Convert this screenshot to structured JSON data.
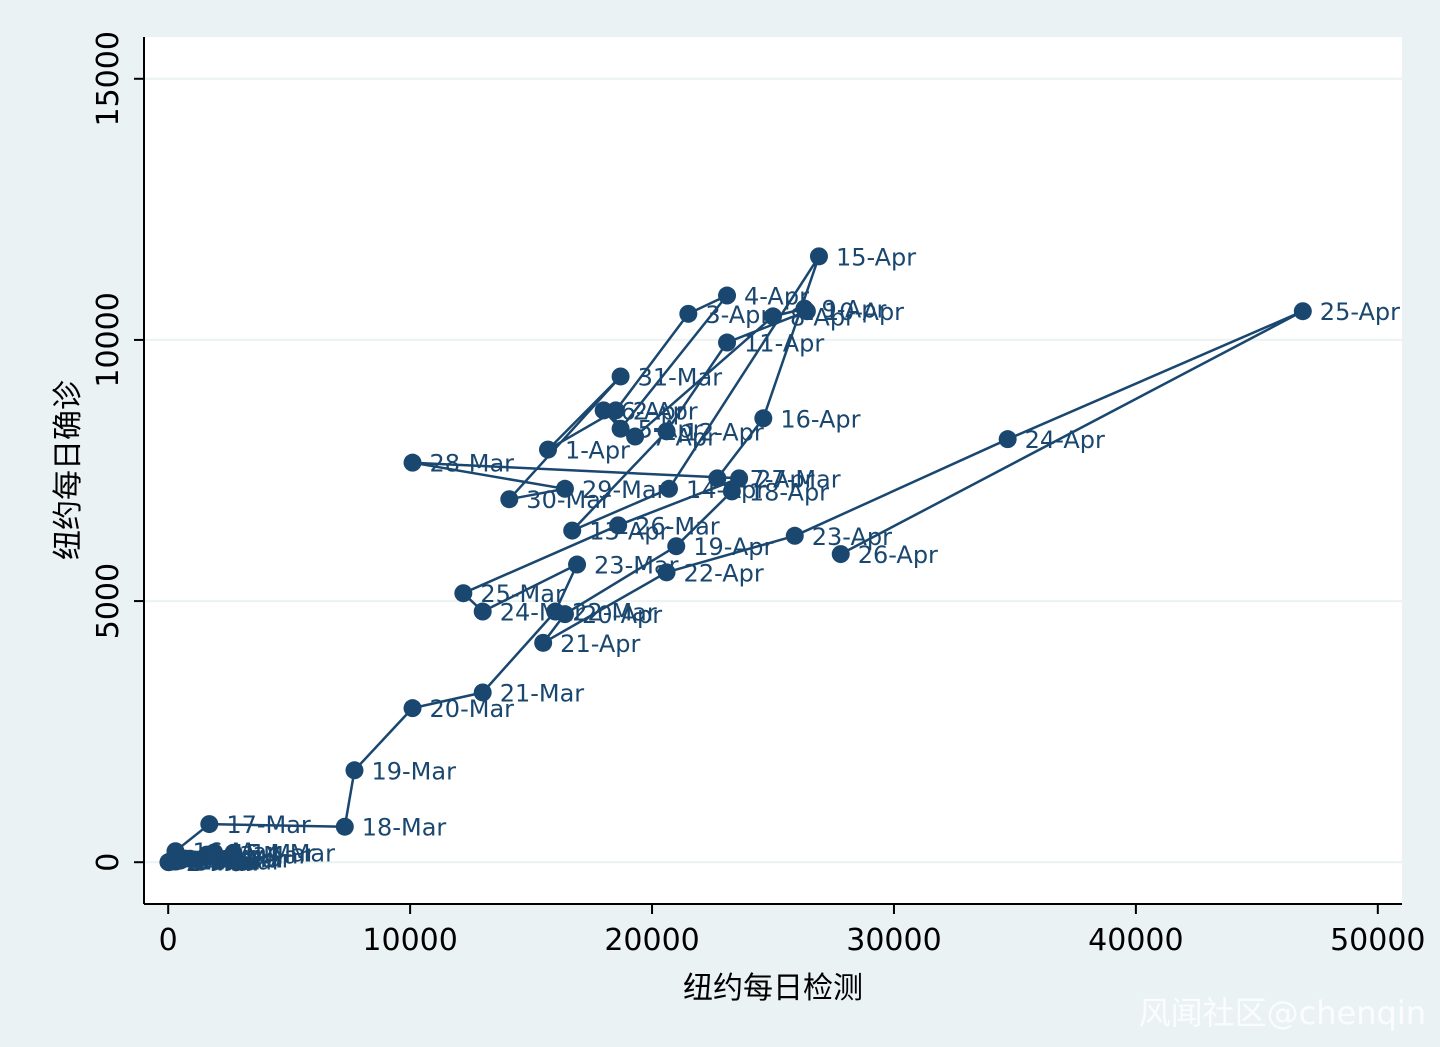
{
  "watermark": "风闻社区@chenqin",
  "chart_data": {
    "type": "scatter",
    "connected": true,
    "title": "",
    "xlabel": "纽约每日检测",
    "ylabel": "纽约每日确诊",
    "xlim": [
      -1000,
      51000
    ],
    "ylim": [
      -800,
      15800
    ],
    "xticks": [
      0,
      10000,
      20000,
      30000,
      40000,
      50000
    ],
    "yticks": [
      0,
      5000,
      10000,
      15000
    ],
    "grid": "horizontal",
    "colors": {
      "series": "#1a476f",
      "plot_bg": "#ffffff",
      "outer_bg": "#eaf2f3",
      "grid": "#eaf2f3"
    },
    "points": [
      {
        "label": "1-Mar",
        "x": 10,
        "y": 1
      },
      {
        "label": "2-Mar",
        "x": 30,
        "y": 2
      },
      {
        "label": "3-Mar",
        "x": 60,
        "y": 10
      },
      {
        "label": "4-Mar",
        "x": 110,
        "y": 11
      },
      {
        "label": "5-Mar",
        "x": 160,
        "y": 22
      },
      {
        "label": "6-Mar",
        "x": 230,
        "y": 44
      },
      {
        "label": "7-Mar",
        "x": 290,
        "y": 13
      },
      {
        "label": "8-Mar",
        "x": 330,
        "y": 16
      },
      {
        "label": "9-Mar",
        "x": 400,
        "y": 36
      },
      {
        "label": "10-Mar",
        "x": 500,
        "y": 31
      },
      {
        "label": "11-Mar",
        "x": 700,
        "y": 69
      },
      {
        "label": "12-Mar",
        "x": 900,
        "y": 67
      },
      {
        "label": "13-Mar",
        "x": 1600,
        "y": 146
      },
      {
        "label": "14-Mar",
        "x": 2700,
        "y": 182
      },
      {
        "label": "15-Mar",
        "x": 1900,
        "y": 186
      },
      {
        "label": "16-Mar",
        "x": 300,
        "y": 210
      },
      {
        "label": "17-Mar",
        "x": 1700,
        "y": 730
      },
      {
        "label": "18-Mar",
        "x": 7300,
        "y": 680
      },
      {
        "label": "19-Mar",
        "x": 7700,
        "y": 1760
      },
      {
        "label": "20-Mar",
        "x": 10100,
        "y": 2950
      },
      {
        "label": "21-Mar",
        "x": 13000,
        "y": 3250
      },
      {
        "label": "22-Mar",
        "x": 16000,
        "y": 4800
      },
      {
        "label": "23-Mar",
        "x": 16900,
        "y": 5700
      },
      {
        "label": "24-Mar",
        "x": 13000,
        "y": 4800
      },
      {
        "label": "25-Mar",
        "x": 12200,
        "y": 5150
      },
      {
        "label": "26-Mar",
        "x": 18600,
        "y": 6450
      },
      {
        "label": "27-Mar",
        "x": 23600,
        "y": 7350
      },
      {
        "label": "28-Mar",
        "x": 10100,
        "y": 7650
      },
      {
        "label": "29-Mar",
        "x": 16400,
        "y": 7150
      },
      {
        "label": "30-Mar",
        "x": 14100,
        "y": 6950
      },
      {
        "label": "31-Mar",
        "x": 18700,
        "y": 9300
      },
      {
        "label": "1-Apr",
        "x": 15700,
        "y": 7900
      },
      {
        "label": "2-Apr",
        "x": 18500,
        "y": 8650
      },
      {
        "label": "3-Apr",
        "x": 21500,
        "y": 10500
      },
      {
        "label": "4-Apr",
        "x": 23100,
        "y": 10850
      },
      {
        "label": "5-Apr",
        "x": 18700,
        "y": 8300
      },
      {
        "label": "6-Apr",
        "x": 18000,
        "y": 8650
      },
      {
        "label": "7-Apr",
        "x": 19300,
        "y": 8150
      },
      {
        "label": "8-Apr",
        "x": 25000,
        "y": 10450
      },
      {
        "label": "9-Apr",
        "x": 26300,
        "y": 10600
      },
      {
        "label": "10-Apr",
        "x": 26400,
        "y": 10550
      },
      {
        "label": "11-Apr",
        "x": 23100,
        "y": 9950
      },
      {
        "label": "12-Apr",
        "x": 20600,
        "y": 8250
      },
      {
        "label": "13-Apr",
        "x": 16700,
        "y": 6350
      },
      {
        "label": "14-Apr",
        "x": 20700,
        "y": 7150
      },
      {
        "label": "15-Apr",
        "x": 26900,
        "y": 11600
      },
      {
        "label": "16-Apr",
        "x": 24600,
        "y": 8500
      },
      {
        "label": "17-Apr",
        "x": 22700,
        "y": 7350
      },
      {
        "label": "18-Apr",
        "x": 23300,
        "y": 7100
      },
      {
        "label": "19-Apr",
        "x": 21000,
        "y": 6050
      },
      {
        "label": "20-Apr",
        "x": 16400,
        "y": 4750
      },
      {
        "label": "21-Apr",
        "x": 15500,
        "y": 4200
      },
      {
        "label": "22-Apr",
        "x": 20600,
        "y": 5550
      },
      {
        "label": "23-Apr",
        "x": 25900,
        "y": 6250
      },
      {
        "label": "24-Apr",
        "x": 34700,
        "y": 8100
      },
      {
        "label": "25-Apr",
        "x": 46900,
        "y": 10550
      },
      {
        "label": "26-Apr",
        "x": 27800,
        "y": 5900
      }
    ]
  }
}
